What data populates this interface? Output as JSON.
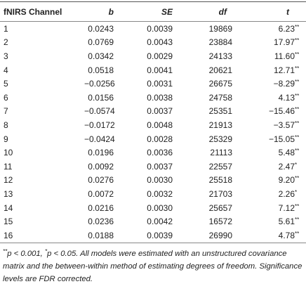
{
  "table": {
    "headers": [
      "fNIRS Channel",
      "b",
      "SE",
      "df",
      "t"
    ],
    "rows": [
      {
        "channel": "1",
        "b": "0.0243",
        "se": "0.0039",
        "df": "19869",
        "t": "6.23",
        "sig": "**"
      },
      {
        "channel": "2",
        "b": "0.0769",
        "se": "0.0043",
        "df": "23884",
        "t": "17.97",
        "sig": "**"
      },
      {
        "channel": "3",
        "b": "0.0342",
        "se": "0.0029",
        "df": "24133",
        "t": "11.60",
        "sig": "**"
      },
      {
        "channel": "4",
        "b": "0.0518",
        "se": "0.0041",
        "df": "20621",
        "t": "12.71",
        "sig": "**"
      },
      {
        "channel": "5",
        "b": "−0.0256",
        "se": "0.0031",
        "df": "26675",
        "t": "−8.29",
        "sig": "**"
      },
      {
        "channel": "6",
        "b": "0.0156",
        "se": "0.0038",
        "df": "24758",
        "t": "4.13",
        "sig": "**"
      },
      {
        "channel": "7",
        "b": "−0.0574",
        "se": "0.0037",
        "df": "25351",
        "t": "−15.46",
        "sig": "**"
      },
      {
        "channel": "8",
        "b": "−0.0172",
        "se": "0.0048",
        "df": "21913",
        "t": "−3.57",
        "sig": "**"
      },
      {
        "channel": "9",
        "b": "−0.0424",
        "se": "0.0028",
        "df": "25329",
        "t": "−15.05",
        "sig": "**"
      },
      {
        "channel": "10",
        "b": "0.0196",
        "se": "0.0036",
        "df": "21113",
        "t": "5.48",
        "sig": "**"
      },
      {
        "channel": "11",
        "b": "0.0092",
        "se": "0.0037",
        "df": "22557",
        "t": "2.47",
        "sig": "*"
      },
      {
        "channel": "12",
        "b": "0.0276",
        "se": "0.0030",
        "df": "25518",
        "t": "9.20",
        "sig": "**"
      },
      {
        "channel": "13",
        "b": "0.0072",
        "se": "0.0032",
        "df": "21703",
        "t": "2.26",
        "sig": "*"
      },
      {
        "channel": "14",
        "b": "0.0216",
        "se": "0.0030",
        "df": "25657",
        "t": "7.12",
        "sig": "**"
      },
      {
        "channel": "15",
        "b": "0.0236",
        "se": "0.0042",
        "df": "16572",
        "t": "5.61",
        "sig": "**"
      },
      {
        "channel": "16",
        "b": "0.0188",
        "se": "0.0039",
        "df": "26990",
        "t": "4.78",
        "sig": "**"
      }
    ]
  },
  "note": {
    "sig1": "**",
    "text1": "p < 0.001, ",
    "sig2": "*",
    "text2": "p < 0.05. All models were estimated with an unstructured covariance matrix and the between-within method of estimating degrees of freedom. Significance levels are FDR corrected."
  }
}
